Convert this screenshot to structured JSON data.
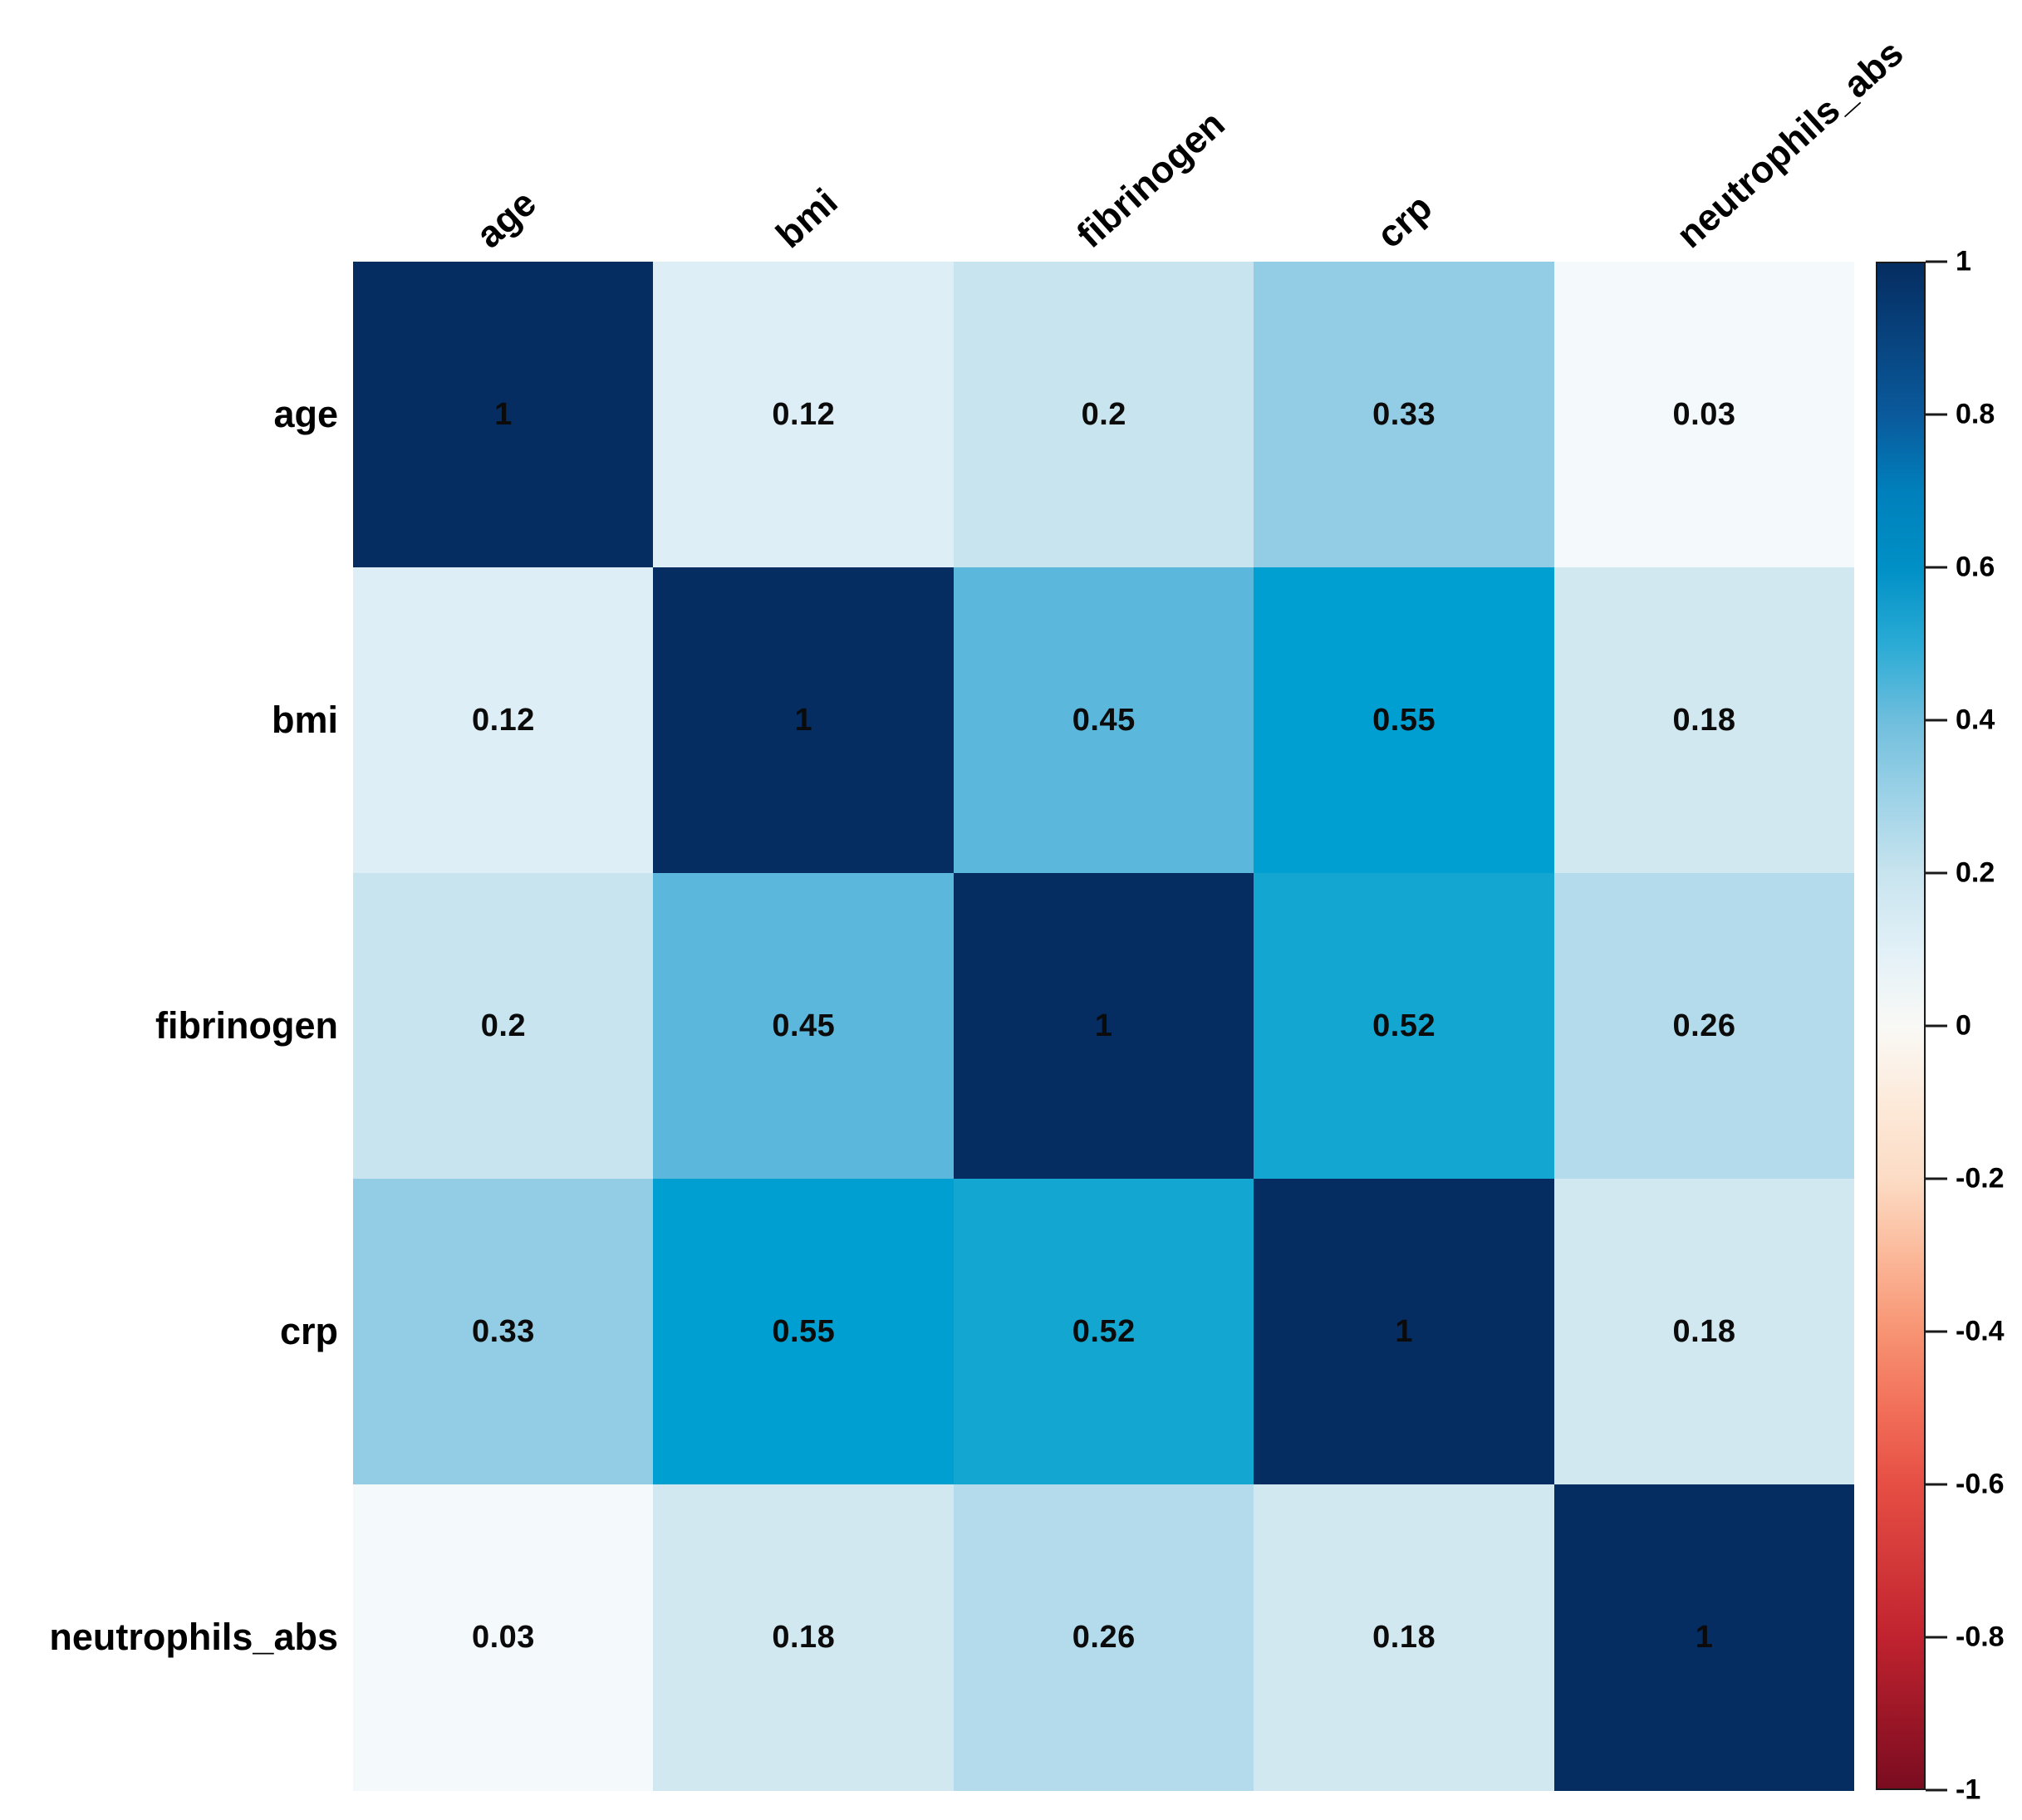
{
  "chart_data": {
    "type": "heatmap",
    "title": "",
    "xlabel": "",
    "ylabel": "",
    "variables": [
      "age",
      "bmi",
      "fibrinogen",
      "crp",
      "neutrophils_abs"
    ],
    "matrix": [
      [
        1,
        0.12,
        0.2,
        0.33,
        0.03
      ],
      [
        0.12,
        1,
        0.45,
        0.55,
        0.18
      ],
      [
        0.2,
        0.45,
        1,
        0.52,
        0.26
      ],
      [
        0.33,
        0.55,
        0.52,
        1,
        0.18
      ],
      [
        0.03,
        0.18,
        0.26,
        0.18,
        1
      ]
    ],
    "cell_labels": [
      [
        "1",
        "0.12",
        "0.2",
        "0.33",
        "0.03"
      ],
      [
        "0.12",
        "1",
        "0.45",
        "0.55",
        "0.18"
      ],
      [
        "0.2",
        "0.45",
        "1",
        "0.52",
        "0.26"
      ],
      [
        "0.33",
        "0.55",
        "0.52",
        "1",
        "0.18"
      ],
      [
        "0.03",
        "0.18",
        "0.26",
        "0.18",
        "1"
      ]
    ],
    "value_colors": {
      "1": "#052d61",
      "0.55": "#009fd1",
      "0.52": "#13a6d1",
      "0.45": "#5bb7db",
      "0.33": "#92cde5",
      "0.26": "#b3dbeb",
      "0.2": "#c8e4ef",
      "0.18": "#d1e8f1",
      "0.12": "#deeef6",
      "0.03": "#f4f9fb"
    },
    "text_color": "#000000",
    "background": "#ffffff",
    "grid": false,
    "legend_position": "right",
    "colorbar": {
      "min": -1,
      "max": 1,
      "tick_values": [
        1,
        0.8,
        0.6,
        0.4,
        0.2,
        0,
        -0.2,
        -0.4,
        -0.6,
        -0.8,
        -1
      ],
      "tick_labels": [
        "1",
        "0.8",
        "0.6",
        "0.4",
        "0.2",
        "0",
        "-0.2",
        "-0.4",
        "-0.6",
        "-0.8",
        "-1"
      ],
      "gradient": [
        {
          "v": 1.0,
          "c": "#052d61"
        },
        {
          "v": 0.8,
          "c": "#0a5a9c"
        },
        {
          "v": 0.7,
          "c": "#0080bc"
        },
        {
          "v": 0.6,
          "c": "#0090c6"
        },
        {
          "v": 0.5,
          "c": "#2aabd5"
        },
        {
          "v": 0.4,
          "c": "#6fbedd"
        },
        {
          "v": 0.3,
          "c": "#9dd2e7"
        },
        {
          "v": 0.2,
          "c": "#c8e4ef"
        },
        {
          "v": 0.1,
          "c": "#e2f0f7"
        },
        {
          "v": 0.0,
          "c": "#f9f9f6"
        },
        {
          "v": -0.1,
          "c": "#fdeada"
        },
        {
          "v": -0.2,
          "c": "#fcdcc5"
        },
        {
          "v": -0.3,
          "c": "#fbb99a"
        },
        {
          "v": -0.4,
          "c": "#f79473"
        },
        {
          "v": -0.5,
          "c": "#f2705a"
        },
        {
          "v": -0.6,
          "c": "#e64f44"
        },
        {
          "v": -0.8,
          "c": "#c1232f"
        },
        {
          "v": -1.0,
          "c": "#7a0c20"
        }
      ]
    }
  }
}
